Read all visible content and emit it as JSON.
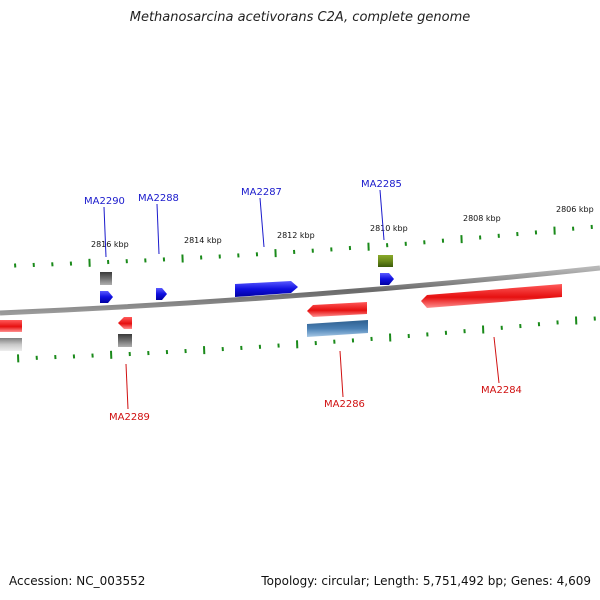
{
  "title": "Methanosarcina acetivorans C2A, complete genome",
  "footer": {
    "accession": "Accession: NC_003552",
    "summary": "Topology: circular; Length: 5,751,492 bp; Genes: 4,609"
  },
  "scale_labels": [
    "2816 kbp",
    "2814 kbp",
    "2812 kbp",
    "2810 kbp",
    "2808 kbp",
    "2806 kbp"
  ],
  "gene_labels": {
    "MA2290": "MA2290",
    "MA2288": "MA2288",
    "MA2287": "MA2287",
    "MA2285": "MA2285",
    "MA2289": "MA2289",
    "MA2286": "MA2286",
    "MA2284": "MA2284"
  },
  "colors": {
    "forward_strand": "#1414e6",
    "reverse_strand": "#e61414",
    "rna_gene": "#4a80b4",
    "pseudo_gene": "#6a8a1a",
    "other_gene": "#707070",
    "tick": "#1a8a1a",
    "backbone": "#8a8a8a"
  }
}
